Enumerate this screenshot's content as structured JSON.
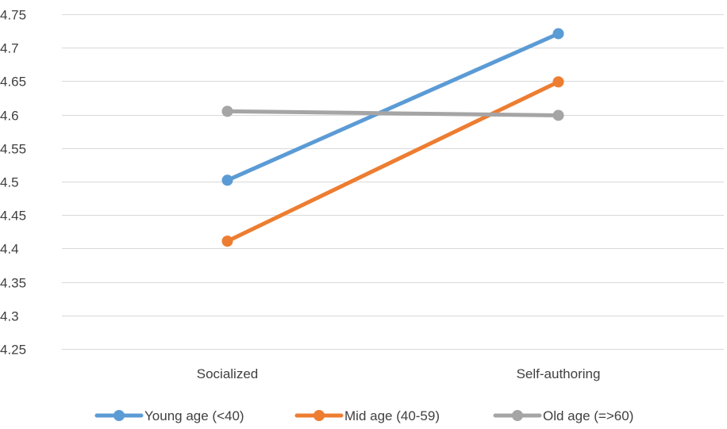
{
  "chart_data": {
    "type": "line",
    "categories": [
      "Socialized",
      "Self-authoring"
    ],
    "series": [
      {
        "name": "Young age (<40)",
        "color": "#5b9bd5",
        "values": [
          4.502,
          4.721
        ]
      },
      {
        "name": "Mid age (40-59)",
        "color": "#ed7d31",
        "values": [
          4.411,
          4.649
        ]
      },
      {
        "name": "Old age (=>60)",
        "color": "#a5a5a5",
        "values": [
          4.605,
          4.599
        ]
      }
    ],
    "ylim": [
      4.25,
      4.75
    ],
    "yticks": [
      "4.25",
      "4.3",
      "4.35",
      "4.4",
      "4.45",
      "4.5",
      "4.55",
      "4.6",
      "4.65",
      "4.7",
      "4.75"
    ],
    "grid": true,
    "legend_position": "bottom",
    "title": "",
    "xlabel": "",
    "ylabel": ""
  }
}
